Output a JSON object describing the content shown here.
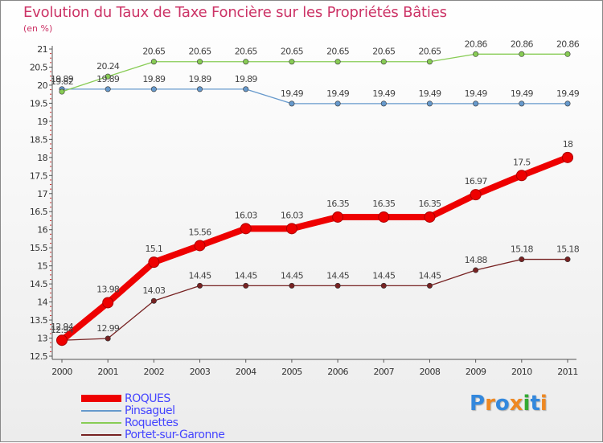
{
  "chart_data": {
    "type": "line",
    "title": "Evolution du Taux de Taxe Foncière sur les Propriétés Bâties",
    "ylabel": "(en %)",
    "xlabel": "",
    "categories": [
      "2000",
      "2001",
      "2002",
      "2003",
      "2004",
      "2005",
      "2006",
      "2007",
      "2008",
      "2009",
      "2010",
      "2011"
    ],
    "ylim": [
      12.5,
      21
    ],
    "yticks": [
      "12.5",
      "13",
      "13.5",
      "14",
      "14.5",
      "15",
      "15.5",
      "16",
      "16.5",
      "17",
      "17.5",
      "18",
      "18.5",
      "19",
      "19.5",
      "20",
      "20.5",
      "21"
    ],
    "grid": false,
    "series": [
      {
        "name": "ROQUES",
        "color": "#ee0000",
        "values": [
          12.94,
          13.98,
          15.1,
          15.56,
          16.03,
          16.03,
          16.35,
          16.35,
          16.35,
          16.97,
          17.5,
          18
        ],
        "labels": [
          "12.94",
          "13.98",
          "15.1",
          "15.56",
          "16.03",
          "16.03",
          "16.35",
          "16.35",
          "16.35",
          "16.97",
          "17.5",
          "18"
        ]
      },
      {
        "name": "Pinsaguel",
        "color": "#6699cc",
        "values": [
          19.89,
          19.89,
          19.89,
          19.89,
          19.89,
          19.49,
          19.49,
          19.49,
          19.49,
          19.49,
          19.49,
          19.49
        ],
        "labels": [
          "19.89",
          "19.89",
          "19.89",
          "19.89",
          "19.89",
          "19.49",
          "19.49",
          "19.49",
          "19.49",
          "19.49",
          "19.49",
          "19.49"
        ]
      },
      {
        "name": "Roquettes",
        "color": "#88cc55",
        "values": [
          19.82,
          20.24,
          20.65,
          20.65,
          20.65,
          20.65,
          20.65,
          20.65,
          20.65,
          20.86,
          20.86,
          20.86
        ],
        "labels": [
          "19.82",
          "20.24",
          "20.65",
          "20.65",
          "20.65",
          "20.65",
          "20.65",
          "20.65",
          "20.65",
          "20.86",
          "20.86",
          "20.86"
        ]
      },
      {
        "name": "Portet-sur-Garonne",
        "color": "#772222",
        "values": [
          12.94,
          12.99,
          14.03,
          14.45,
          14.45,
          14.45,
          14.45,
          14.45,
          14.45,
          14.88,
          15.18,
          15.18
        ],
        "labels": [
          "12.94",
          "12.99",
          "14.03",
          "14.45",
          "14.45",
          "14.45",
          "14.45",
          "14.45",
          "14.45",
          "14.88",
          "15.18",
          "15.18"
        ]
      }
    ],
    "legend_position": "bottom-left"
  },
  "legend": {
    "items": [
      {
        "label": "ROQUES",
        "color": "#ee0000"
      },
      {
        "label": "Pinsaguel",
        "color": "#6699cc"
      },
      {
        "label": "Roquettes",
        "color": "#88cc55"
      },
      {
        "label": "Portet-sur-Garonne",
        "color": "#772222"
      }
    ]
  },
  "logo": {
    "text": "Proxiti",
    "letters": [
      "P",
      "r",
      "o",
      "x",
      "i",
      "t",
      "i"
    ],
    "colors": [
      "#3388dd",
      "#ee8822",
      "#3388dd",
      "#ee8822",
      "#33aa33",
      "#3388dd",
      "#ee8822"
    ]
  }
}
